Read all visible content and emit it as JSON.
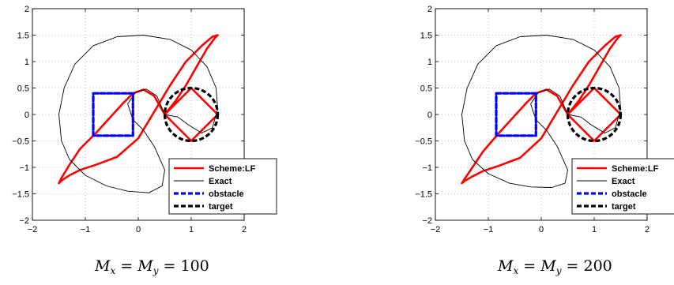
{
  "chart_data": [
    {
      "type": "line",
      "xlim": [
        -2,
        2
      ],
      "ylim": [
        -2,
        2
      ],
      "xticks": [
        -2,
        -1,
        0,
        1,
        2
      ],
      "yticks": [
        -2,
        -1.5,
        -1,
        -0.5,
        0,
        0.5,
        1,
        1.5,
        2
      ],
      "xtick_labels": [
        "−2",
        "−1",
        "0",
        "1",
        "2"
      ],
      "ytick_labels": [
        "−2",
        "−1.5",
        "−1",
        "−0.5",
        "0",
        "0.5",
        "1",
        "1.5",
        "2"
      ],
      "grid": true,
      "legend_position": "bottom-right",
      "caption": {
        "lhs": "M",
        "sub1": "x",
        "mid": "M",
        "sub2": "y",
        "value": "100"
      },
      "series": [
        {
          "name": "Scheme:LF",
          "color": "#ff0000",
          "style": "solid",
          "x": [
            0.5,
            1.0,
            1.5,
            1.5,
            1.0,
            0.5,
            0.5,
            0.3,
            0.1,
            -0.1,
            -0.3,
            -0.8,
            -1.1,
            -1.3,
            -1.45,
            -1.5,
            -1.45,
            -1.3,
            -1.1,
            -0.8,
            -0.4,
            0.0,
            0.3,
            0.6,
            0.9,
            1.2,
            1.4,
            1.5,
            1.45,
            1.3,
            1.1,
            0.9,
            0.7,
            0.5
          ],
          "y": [
            0.0,
            0.5,
            0.0,
            0.0,
            -0.5,
            0.0,
            0.0,
            0.35,
            0.47,
            0.4,
            0.2,
            -0.35,
            -0.65,
            -0.95,
            -1.2,
            -1.3,
            -1.25,
            -1.15,
            -1.05,
            -0.95,
            -0.8,
            -0.45,
            0.05,
            0.55,
            1.0,
            1.3,
            1.47,
            1.5,
            1.45,
            1.25,
            0.9,
            0.55,
            0.25,
            0.0
          ]
        },
        {
          "name": "Exact",
          "color": "#000000",
          "style": "solid-thin",
          "x": [
            0.5,
            0.35,
            0.15,
            -0.05,
            -0.2,
            -0.1,
            0.1,
            0.3,
            0.5,
            0.45,
            0.2,
            -0.2,
            -0.6,
            -1.0,
            -1.3,
            -1.45,
            -1.5,
            -1.4,
            -1.2,
            -0.85,
            -0.4,
            0.1,
            0.6,
            1.0,
            1.3,
            1.47,
            1.5,
            1.4,
            1.2,
            0.95,
            0.75,
            0.5
          ],
          "y": [
            0.0,
            0.35,
            0.48,
            0.42,
            0.2,
            -0.1,
            -0.3,
            -0.6,
            -1.05,
            -1.35,
            -1.48,
            -1.45,
            -1.35,
            -1.15,
            -0.85,
            -0.5,
            0.0,
            0.5,
            0.95,
            1.3,
            1.47,
            1.5,
            1.42,
            1.22,
            0.9,
            0.5,
            0.1,
            -0.25,
            -0.35,
            -0.2,
            -0.05,
            0.0
          ]
        },
        {
          "name": "obstacle",
          "color": "#0000ff",
          "style": "dashed-thick",
          "x": [
            -0.85,
            -0.1,
            -0.1,
            -0.85,
            -0.85
          ],
          "y": [
            0.4,
            0.4,
            -0.4,
            -0.4,
            0.4
          ]
        },
        {
          "name": "target",
          "color": "#000000",
          "style": "dashed-thick",
          "circle": {
            "cx": 1.0,
            "cy": 0.0,
            "r": 0.5
          }
        }
      ]
    },
    {
      "type": "line",
      "xlim": [
        -2,
        2
      ],
      "ylim": [
        -2,
        2
      ],
      "xticks": [
        -2,
        -1,
        0,
        1,
        2
      ],
      "yticks": [
        -2,
        -1.5,
        -1,
        -0.5,
        0,
        0.5,
        1,
        1.5,
        2
      ],
      "xtick_labels": [
        "−2",
        "−1",
        "0",
        "1",
        "2"
      ],
      "ytick_labels": [
        "−2",
        "−1.5",
        "−1",
        "−0.5",
        "0",
        "0.5",
        "1",
        "1.5",
        "2"
      ],
      "grid": true,
      "legend_position": "bottom-right",
      "caption": {
        "lhs": "M",
        "sub1": "x",
        "mid": "M",
        "sub2": "y",
        "value": "200"
      },
      "series": [
        {
          "name": "Scheme:LF",
          "color": "#ff0000",
          "style": "solid",
          "x": [
            0.5,
            1.0,
            1.5,
            1.5,
            1.0,
            0.5,
            0.5,
            0.3,
            0.1,
            -0.1,
            -0.3,
            -0.8,
            -1.1,
            -1.3,
            -1.45,
            -1.5,
            -1.45,
            -1.3,
            -1.1,
            -0.8,
            -0.4,
            0.0,
            0.3,
            0.6,
            0.9,
            1.2,
            1.4,
            1.5,
            1.45,
            1.3,
            1.1,
            0.9,
            0.7,
            0.5
          ],
          "y": [
            0.0,
            0.5,
            0.0,
            0.0,
            -0.5,
            0.0,
            0.0,
            0.35,
            0.47,
            0.4,
            0.2,
            -0.35,
            -0.7,
            -1.0,
            -1.22,
            -1.3,
            -1.26,
            -1.17,
            -1.07,
            -0.97,
            -0.82,
            -0.45,
            0.05,
            0.55,
            1.0,
            1.3,
            1.47,
            1.5,
            1.45,
            1.25,
            0.9,
            0.55,
            0.25,
            0.0
          ]
        },
        {
          "name": "Exact",
          "color": "#000000",
          "style": "solid-thin",
          "x": [
            0.5,
            0.35,
            0.15,
            -0.05,
            -0.2,
            -0.1,
            0.1,
            0.3,
            0.5,
            0.45,
            0.2,
            -0.2,
            -0.6,
            -1.0,
            -1.3,
            -1.45,
            -1.5,
            -1.4,
            -1.2,
            -0.85,
            -0.4,
            0.1,
            0.6,
            1.0,
            1.3,
            1.47,
            1.5,
            1.4,
            1.2,
            0.95,
            0.75,
            0.5
          ],
          "y": [
            0.0,
            0.35,
            0.48,
            0.42,
            0.2,
            -0.1,
            -0.3,
            -0.6,
            -1.05,
            -1.3,
            -1.38,
            -1.37,
            -1.3,
            -1.12,
            -0.85,
            -0.5,
            0.0,
            0.5,
            0.95,
            1.3,
            1.47,
            1.5,
            1.42,
            1.22,
            0.9,
            0.5,
            0.1,
            -0.25,
            -0.35,
            -0.2,
            -0.05,
            0.0
          ]
        },
        {
          "name": "obstacle",
          "color": "#0000ff",
          "style": "dashed-thick",
          "x": [
            -0.85,
            -0.1,
            -0.1,
            -0.85,
            -0.85
          ],
          "y": [
            0.4,
            0.4,
            -0.4,
            -0.4,
            0.4
          ]
        },
        {
          "name": "target",
          "color": "#000000",
          "style": "dashed-thick",
          "circle": {
            "cx": 1.0,
            "cy": 0.0,
            "r": 0.5
          }
        }
      ]
    }
  ]
}
